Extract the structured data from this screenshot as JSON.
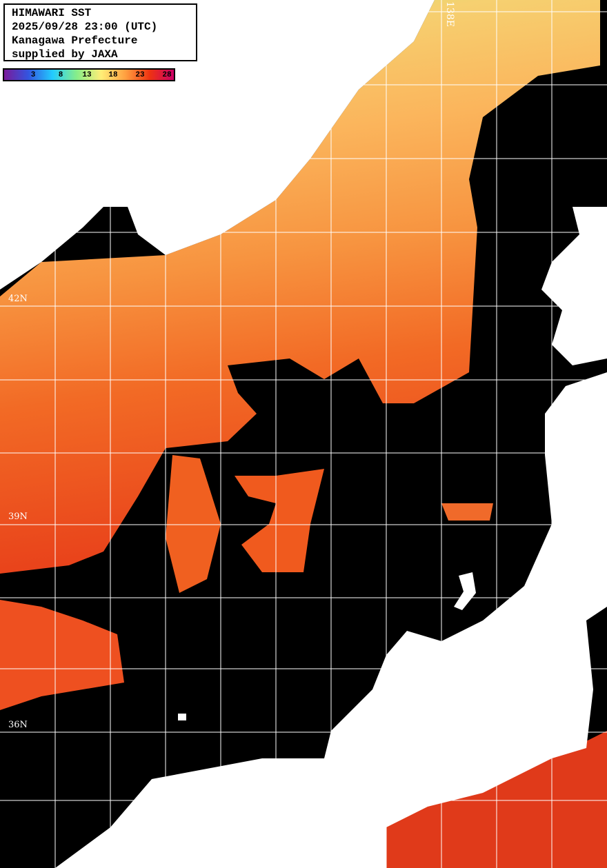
{
  "title_box": {
    "line1": "HIMAWARI SST",
    "line2": "2025/09/28 23:00 (UTC)",
    "line3": "Kanagawa Prefecture",
    "line4": "supplied by JAXA"
  },
  "colorbar": {
    "ticks": [
      "3",
      "8",
      "13",
      "18",
      "23",
      "28"
    ],
    "colors": [
      "#7a1a9a",
      "#3355e0",
      "#22ccff",
      "#88ee88",
      "#ffee77",
      "#ffa040",
      "#ee3311",
      "#cc0066"
    ]
  },
  "grid": {
    "lat_labels": [
      "42N",
      "39N",
      "36N"
    ],
    "lon_labels": [
      "138E"
    ]
  },
  "colors": {
    "land": "#ffffff",
    "no_data": "#000000",
    "grid": "#ffffff"
  }
}
